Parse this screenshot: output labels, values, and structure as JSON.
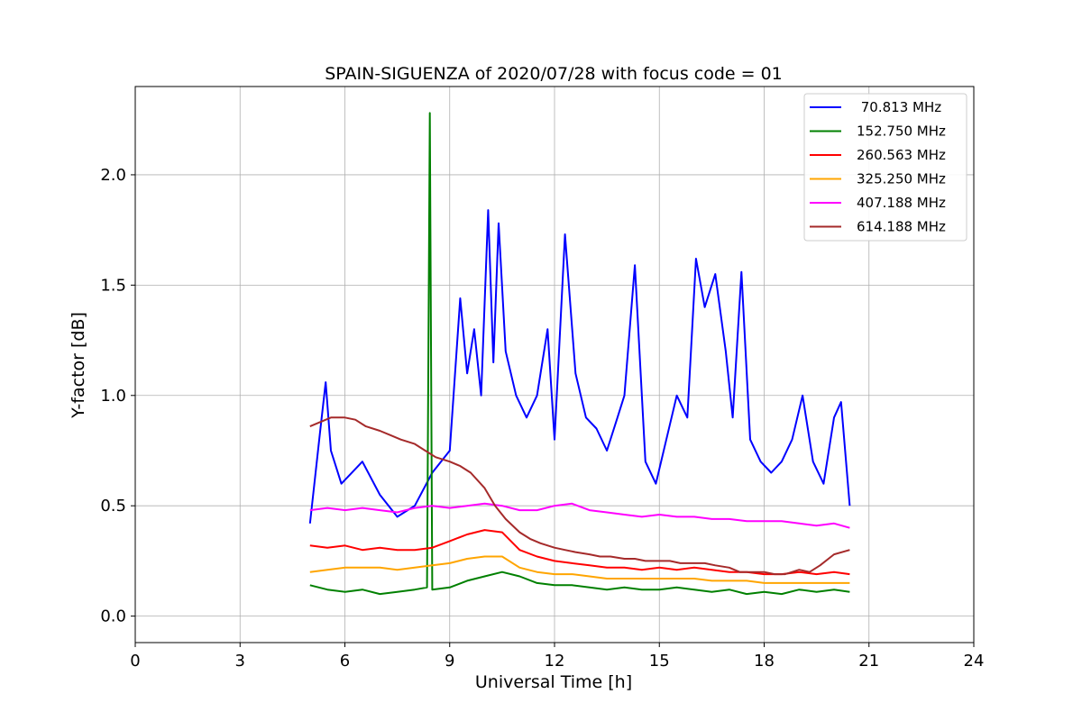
{
  "chart_data": {
    "type": "line",
    "title": "SPAIN-SIGUENZA of 2020/07/28 with focus code = 01",
    "xlabel": "Universal Time [h]",
    "ylabel": "Y-factor [dB]",
    "xlim": [
      0,
      24
    ],
    "ylim": [
      -0.12,
      2.4
    ],
    "xticks": [
      0,
      3,
      6,
      9,
      12,
      15,
      18,
      21,
      24
    ],
    "xtick_labels": [
      "0",
      "3",
      "6",
      "9",
      "12",
      "15",
      "18",
      "21",
      "24"
    ],
    "yticks": [
      0.0,
      0.5,
      1.0,
      1.5,
      2.0
    ],
    "ytick_labels": [
      "0.0",
      "0.5",
      "1.0",
      "1.5",
      "2.0"
    ],
    "grid": true,
    "legend_position": "top-right",
    "series": [
      {
        "name": " 70.813 MHz",
        "color": "#0000ff",
        "x": [
          5.0,
          5.3,
          5.45,
          5.6,
          5.9,
          6.5,
          7.0,
          7.5,
          8.0,
          8.5,
          9.0,
          9.3,
          9.5,
          9.7,
          9.9,
          10.1,
          10.25,
          10.4,
          10.6,
          10.9,
          11.2,
          11.5,
          11.8,
          12.0,
          12.3,
          12.6,
          12.9,
          13.2,
          13.5,
          13.8,
          14.0,
          14.3,
          14.6,
          14.9,
          15.2,
          15.5,
          15.8,
          16.05,
          16.3,
          16.6,
          16.9,
          17.1,
          17.35,
          17.6,
          17.9,
          18.2,
          18.5,
          18.8,
          19.1,
          19.4,
          19.7,
          20.0,
          20.2,
          20.45
        ],
        "y": [
          0.42,
          0.85,
          1.06,
          0.75,
          0.6,
          0.7,
          0.55,
          0.45,
          0.5,
          0.65,
          0.75,
          1.44,
          1.1,
          1.3,
          1.0,
          1.84,
          1.15,
          1.78,
          1.2,
          1.0,
          0.9,
          1.0,
          1.3,
          0.8,
          1.73,
          1.1,
          0.9,
          0.85,
          0.75,
          0.9,
          1.0,
          1.59,
          0.7,
          0.6,
          0.8,
          1.0,
          0.9,
          1.62,
          1.4,
          1.55,
          1.2,
          0.9,
          1.56,
          0.8,
          0.7,
          0.65,
          0.7,
          0.8,
          1.0,
          0.7,
          0.6,
          0.9,
          0.97,
          0.5
        ]
      },
      {
        "name": "152.750 MHz",
        "color": "#008000",
        "x": [
          5.0,
          5.5,
          6.0,
          6.5,
          7.0,
          7.5,
          8.0,
          8.35,
          8.43,
          8.5,
          9.0,
          9.5,
          10.0,
          10.5,
          11.0,
          11.5,
          12.0,
          12.5,
          13.0,
          13.5,
          14.0,
          14.5,
          15.0,
          15.5,
          16.0,
          16.5,
          17.0,
          17.5,
          18.0,
          18.5,
          19.0,
          19.5,
          20.0,
          20.45
        ],
        "y": [
          0.14,
          0.12,
          0.11,
          0.12,
          0.1,
          0.11,
          0.12,
          0.13,
          2.28,
          0.12,
          0.13,
          0.16,
          0.18,
          0.2,
          0.18,
          0.15,
          0.14,
          0.14,
          0.13,
          0.12,
          0.13,
          0.12,
          0.12,
          0.13,
          0.12,
          0.11,
          0.12,
          0.1,
          0.11,
          0.1,
          0.12,
          0.11,
          0.12,
          0.11
        ]
      },
      {
        "name": "260.563 MHz",
        "color": "#ff0000",
        "x": [
          5.0,
          5.5,
          6.0,
          6.5,
          7.0,
          7.5,
          8.0,
          8.5,
          9.0,
          9.5,
          10.0,
          10.5,
          11.0,
          11.5,
          12.0,
          12.5,
          13.0,
          13.5,
          14.0,
          14.5,
          15.0,
          15.5,
          16.0,
          16.5,
          17.0,
          17.5,
          18.0,
          18.5,
          19.0,
          19.5,
          20.0,
          20.45
        ],
        "y": [
          0.32,
          0.31,
          0.32,
          0.3,
          0.31,
          0.3,
          0.3,
          0.31,
          0.34,
          0.37,
          0.39,
          0.38,
          0.3,
          0.27,
          0.25,
          0.24,
          0.23,
          0.22,
          0.22,
          0.21,
          0.22,
          0.21,
          0.22,
          0.21,
          0.2,
          0.2,
          0.19,
          0.19,
          0.2,
          0.19,
          0.2,
          0.19
        ]
      },
      {
        "name": "325.250 MHz",
        "color": "#ffa500",
        "x": [
          5.0,
          5.5,
          6.0,
          6.5,
          7.0,
          7.5,
          8.0,
          8.5,
          9.0,
          9.5,
          10.0,
          10.5,
          11.0,
          11.5,
          12.0,
          12.5,
          13.0,
          13.5,
          14.0,
          14.5,
          15.0,
          15.5,
          16.0,
          16.5,
          17.0,
          17.5,
          18.0,
          18.5,
          19.0,
          19.5,
          20.0,
          20.45
        ],
        "y": [
          0.2,
          0.21,
          0.22,
          0.22,
          0.22,
          0.21,
          0.22,
          0.23,
          0.24,
          0.26,
          0.27,
          0.27,
          0.22,
          0.2,
          0.19,
          0.19,
          0.18,
          0.17,
          0.17,
          0.17,
          0.17,
          0.17,
          0.17,
          0.16,
          0.16,
          0.16,
          0.15,
          0.15,
          0.15,
          0.15,
          0.15,
          0.15
        ]
      },
      {
        "name": "407.188 MHz",
        "color": "#ff00ff",
        "x": [
          5.0,
          5.5,
          6.0,
          6.5,
          7.0,
          7.5,
          8.0,
          8.5,
          9.0,
          9.5,
          10.0,
          10.5,
          11.0,
          11.5,
          12.0,
          12.5,
          13.0,
          13.5,
          14.0,
          14.5,
          15.0,
          15.5,
          16.0,
          16.5,
          17.0,
          17.5,
          18.0,
          18.5,
          19.0,
          19.5,
          20.0,
          20.45
        ],
        "y": [
          0.48,
          0.49,
          0.48,
          0.49,
          0.48,
          0.47,
          0.49,
          0.5,
          0.49,
          0.5,
          0.51,
          0.5,
          0.48,
          0.48,
          0.5,
          0.51,
          0.48,
          0.47,
          0.46,
          0.45,
          0.46,
          0.45,
          0.45,
          0.44,
          0.44,
          0.43,
          0.43,
          0.43,
          0.42,
          0.41,
          0.42,
          0.4
        ]
      },
      {
        "name": "614.188 MHz",
        "color": "#a52a2a",
        "x": [
          5.0,
          5.3,
          5.6,
          6.0,
          6.3,
          6.6,
          7.0,
          7.3,
          7.6,
          8.0,
          8.3,
          8.6,
          9.0,
          9.3,
          9.6,
          10.0,
          10.3,
          10.6,
          11.0,
          11.3,
          11.6,
          12.0,
          12.3,
          12.6,
          13.0,
          13.3,
          13.6,
          14.0,
          14.3,
          14.6,
          15.0,
          15.3,
          15.6,
          16.0,
          16.3,
          16.6,
          17.0,
          17.3,
          17.6,
          18.0,
          18.3,
          18.6,
          19.0,
          19.3,
          19.6,
          20.0,
          20.45
        ],
        "y": [
          0.86,
          0.88,
          0.9,
          0.9,
          0.89,
          0.86,
          0.84,
          0.82,
          0.8,
          0.78,
          0.75,
          0.72,
          0.7,
          0.68,
          0.65,
          0.58,
          0.5,
          0.44,
          0.38,
          0.35,
          0.33,
          0.31,
          0.3,
          0.29,
          0.28,
          0.27,
          0.27,
          0.26,
          0.26,
          0.25,
          0.25,
          0.25,
          0.24,
          0.24,
          0.24,
          0.23,
          0.22,
          0.2,
          0.2,
          0.2,
          0.19,
          0.19,
          0.21,
          0.2,
          0.23,
          0.28,
          0.3
        ]
      }
    ]
  }
}
